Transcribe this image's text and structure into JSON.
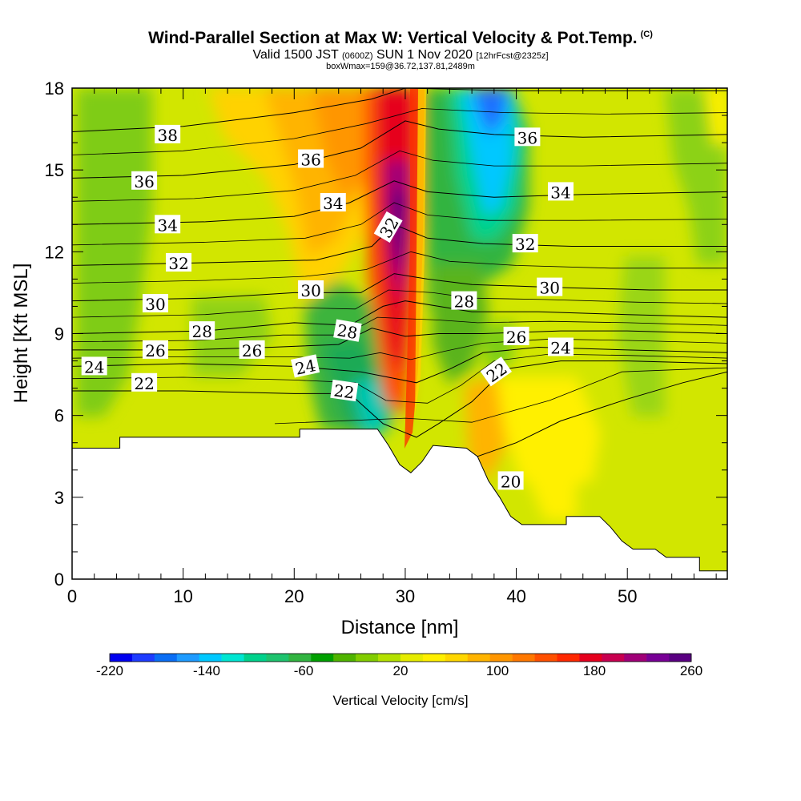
{
  "chart_data": {
    "type": "heatmap",
    "title": "Wind-Parallel Section at Max W: Vertical Velocity & Pot.Temp.",
    "title_mark": "(C)",
    "subtitle": {
      "valid": "Valid 1500 JST",
      "utc": "(0600Z)",
      "date": "SUN 1 Nov 2020",
      "fcst": "[12hrFcst@2325z]"
    },
    "subtitle2": "boxWmax=159@36.72,137.81,2489m",
    "xlabel": "Distance [nm]",
    "ylabel": "Height [Kft MSL]",
    "xlim": [
      0,
      59
    ],
    "ylim": [
      0,
      18
    ],
    "xticks": [
      0,
      10,
      20,
      30,
      40,
      50
    ],
    "yticks": [
      0,
      3,
      6,
      9,
      12,
      15,
      18
    ],
    "colorbar": {
      "label": "Vertical Velocity [cm/s]",
      "min": -220,
      "max": 260,
      "step": 20,
      "tick_labels": [
        -220,
        -140,
        -60,
        20,
        100,
        180,
        260
      ],
      "colors": [
        "#0000f0",
        "#1e3cff",
        "#0a6ef5",
        "#1e9bff",
        "#00c8ff",
        "#00e6d2",
        "#00d28c",
        "#1ec36e",
        "#32b441",
        "#00a000",
        "#50b400",
        "#82cd00",
        "#b4e100",
        "#e6ec00",
        "#fff000",
        "#ffd700",
        "#ffb400",
        "#ff9600",
        "#ff7800",
        "#ff5000",
        "#ff2800",
        "#e6001e",
        "#c80050",
        "#a00078",
        "#780096",
        "#5a0082"
      ]
    },
    "terrain_kft": [
      [
        0,
        4.8
      ],
      [
        4.3,
        4.8
      ],
      [
        4.3,
        5.2
      ],
      [
        20.5,
        5.2
      ],
      [
        20.5,
        5.5
      ],
      [
        27.5,
        5.5
      ],
      [
        28.5,
        4.9
      ],
      [
        29.5,
        4.2
      ],
      [
        30.5,
        3.9
      ],
      [
        31.5,
        4.3
      ],
      [
        32.5,
        4.9
      ],
      [
        35.5,
        4.8
      ],
      [
        36.5,
        4.5
      ],
      [
        37.5,
        3.6
      ],
      [
        38.5,
        3.0
      ],
      [
        39.5,
        2.3
      ],
      [
        40.5,
        2.0
      ],
      [
        44.5,
        2.0
      ],
      [
        44.5,
        2.3
      ],
      [
        47.5,
        2.3
      ],
      [
        48.5,
        1.9
      ],
      [
        49.5,
        1.4
      ],
      [
        50.5,
        1.1
      ],
      [
        52.5,
        1.1
      ],
      [
        53.5,
        0.8
      ],
      [
        56.5,
        0.8
      ],
      [
        56.5,
        0.3
      ],
      [
        59,
        0.3
      ]
    ],
    "theta_contours": [
      {
        "label": "20",
        "points": [
          [
            36.5,
            4.5
          ],
          [
            40,
            5.0
          ],
          [
            44,
            5.8
          ],
          [
            50,
            6.6
          ],
          [
            55,
            7.2
          ],
          [
            59,
            7.6
          ]
        ]
      },
      {
        "label": "22",
        "points": [
          [
            0,
            6.9
          ],
          [
            10,
            6.9
          ],
          [
            20,
            6.8
          ],
          [
            25,
            6.8
          ],
          [
            28,
            5.7
          ],
          [
            31,
            5.2
          ],
          [
            33,
            5.7
          ],
          [
            36,
            6.5
          ],
          [
            39,
            7.7
          ],
          [
            44,
            8.0
          ],
          [
            50,
            8.0
          ],
          [
            59,
            7.9
          ]
        ]
      },
      {
        "label": "24",
        "points": [
          [
            0,
            7.8
          ],
          [
            10,
            7.9
          ],
          [
            20,
            7.8
          ],
          [
            26,
            7.6
          ],
          [
            28.5,
            7.4
          ],
          [
            31,
            7.2
          ],
          [
            34,
            7.7
          ],
          [
            37,
            8.3
          ],
          [
            42,
            8.5
          ],
          [
            50,
            8.4
          ],
          [
            59,
            8.3
          ]
        ]
      },
      {
        "label": "26",
        "points": [
          [
            0,
            8.4
          ],
          [
            10,
            8.4
          ],
          [
            18,
            8.5
          ],
          [
            24,
            8.6
          ],
          [
            27,
            9.2
          ],
          [
            30,
            8.9
          ],
          [
            33,
            9.0
          ],
          [
            37,
            9.0
          ],
          [
            44,
            9.1
          ],
          [
            50,
            9.1
          ],
          [
            59,
            9.0
          ]
        ]
      },
      {
        "label": "28",
        "points": [
          [
            0,
            9.0
          ],
          [
            12,
            9.1
          ],
          [
            20,
            9.4
          ],
          [
            25,
            9.3
          ],
          [
            28,
            10.0
          ],
          [
            30,
            10.2
          ],
          [
            33,
            10.0
          ],
          [
            36,
            9.8
          ],
          [
            42,
            9.8
          ],
          [
            50,
            9.7
          ],
          [
            59,
            9.6
          ]
        ]
      },
      {
        "label": "30",
        "points": [
          [
            0,
            10.2
          ],
          [
            12,
            10.3
          ],
          [
            20,
            10.5
          ],
          [
            26,
            10.5
          ],
          [
            29,
            11.2
          ],
          [
            32,
            11.0
          ],
          [
            36,
            10.8
          ],
          [
            43,
            10.7
          ],
          [
            52,
            10.6
          ],
          [
            59,
            10.6
          ]
        ]
      },
      {
        "label": "32",
        "points": [
          [
            0,
            11.5
          ],
          [
            12,
            11.6
          ],
          [
            22,
            11.7
          ],
          [
            27,
            12.2
          ],
          [
            29,
            13.0
          ],
          [
            32,
            12.5
          ],
          [
            37,
            12.3
          ],
          [
            45,
            12.2
          ],
          [
            59,
            12.2
          ]
        ]
      },
      {
        "label": "34",
        "points": [
          [
            0,
            13.0
          ],
          [
            12,
            13.1
          ],
          [
            20,
            13.3
          ],
          [
            25,
            13.8
          ],
          [
            29,
            14.6
          ],
          [
            32,
            14.2
          ],
          [
            38,
            14.0
          ],
          [
            46,
            14.1
          ],
          [
            59,
            14.2
          ]
        ]
      },
      {
        "label": "36",
        "points": [
          [
            0,
            14.7
          ],
          [
            10,
            14.8
          ],
          [
            20,
            15.2
          ],
          [
            26,
            15.8
          ],
          [
            30,
            16.8
          ],
          [
            33,
            16.5
          ],
          [
            38,
            16.3
          ],
          [
            46,
            16.2
          ],
          [
            59,
            16.3
          ]
        ]
      },
      {
        "label": "38",
        "points": [
          [
            0,
            16.4
          ],
          [
            10,
            16.6
          ],
          [
            20,
            17.1
          ],
          [
            27,
            17.6
          ],
          [
            30,
            18.0
          ],
          [
            40,
            17.9
          ],
          [
            50,
            17.9
          ],
          [
            59,
            17.9
          ]
        ]
      }
    ],
    "contour_labels": [
      {
        "text": "38",
        "x": 8.6,
        "y": 16.3
      },
      {
        "text": "36",
        "x": 6.5,
        "y": 14.6
      },
      {
        "text": "34",
        "x": 8.6,
        "y": 13.0
      },
      {
        "text": "32",
        "x": 9.6,
        "y": 11.6
      },
      {
        "text": "30",
        "x": 7.5,
        "y": 10.1
      },
      {
        "text": "28",
        "x": 11.7,
        "y": 9.1
      },
      {
        "text": "26",
        "x": 7.5,
        "y": 8.4
      },
      {
        "text": "24",
        "x": 2.0,
        "y": 7.8
      },
      {
        "text": "22",
        "x": 6.5,
        "y": 7.2
      },
      {
        "text": "26",
        "x": 16.2,
        "y": 8.4
      },
      {
        "text": "36",
        "x": 21.5,
        "y": 15.4
      },
      {
        "text": "34",
        "x": 23.5,
        "y": 13.8
      },
      {
        "text": "32",
        "x": 28.5,
        "y": 12.9,
        "rotate": -60
      },
      {
        "text": "30",
        "x": 21.5,
        "y": 10.6
      },
      {
        "text": "28",
        "x": 24.8,
        "y": 9.1,
        "rotate": 10
      },
      {
        "text": "24",
        "x": 21.0,
        "y": 7.8,
        "rotate": -12
      },
      {
        "text": "22",
        "x": 24.5,
        "y": 6.9,
        "rotate": 8
      },
      {
        "text": "36",
        "x": 41.0,
        "y": 16.2
      },
      {
        "text": "34",
        "x": 44.0,
        "y": 14.2
      },
      {
        "text": "32",
        "x": 40.8,
        "y": 12.3
      },
      {
        "text": "30",
        "x": 43.0,
        "y": 10.7
      },
      {
        "text": "28",
        "x": 35.3,
        "y": 10.2
      },
      {
        "text": "26",
        "x": 40.0,
        "y": 8.9
      },
      {
        "text": "24",
        "x": 44.0,
        "y": 8.5
      },
      {
        "text": "22",
        "x": 38.2,
        "y": 7.6,
        "rotate": -35
      },
      {
        "text": "20",
        "x": 39.5,
        "y": 3.6
      }
    ]
  }
}
